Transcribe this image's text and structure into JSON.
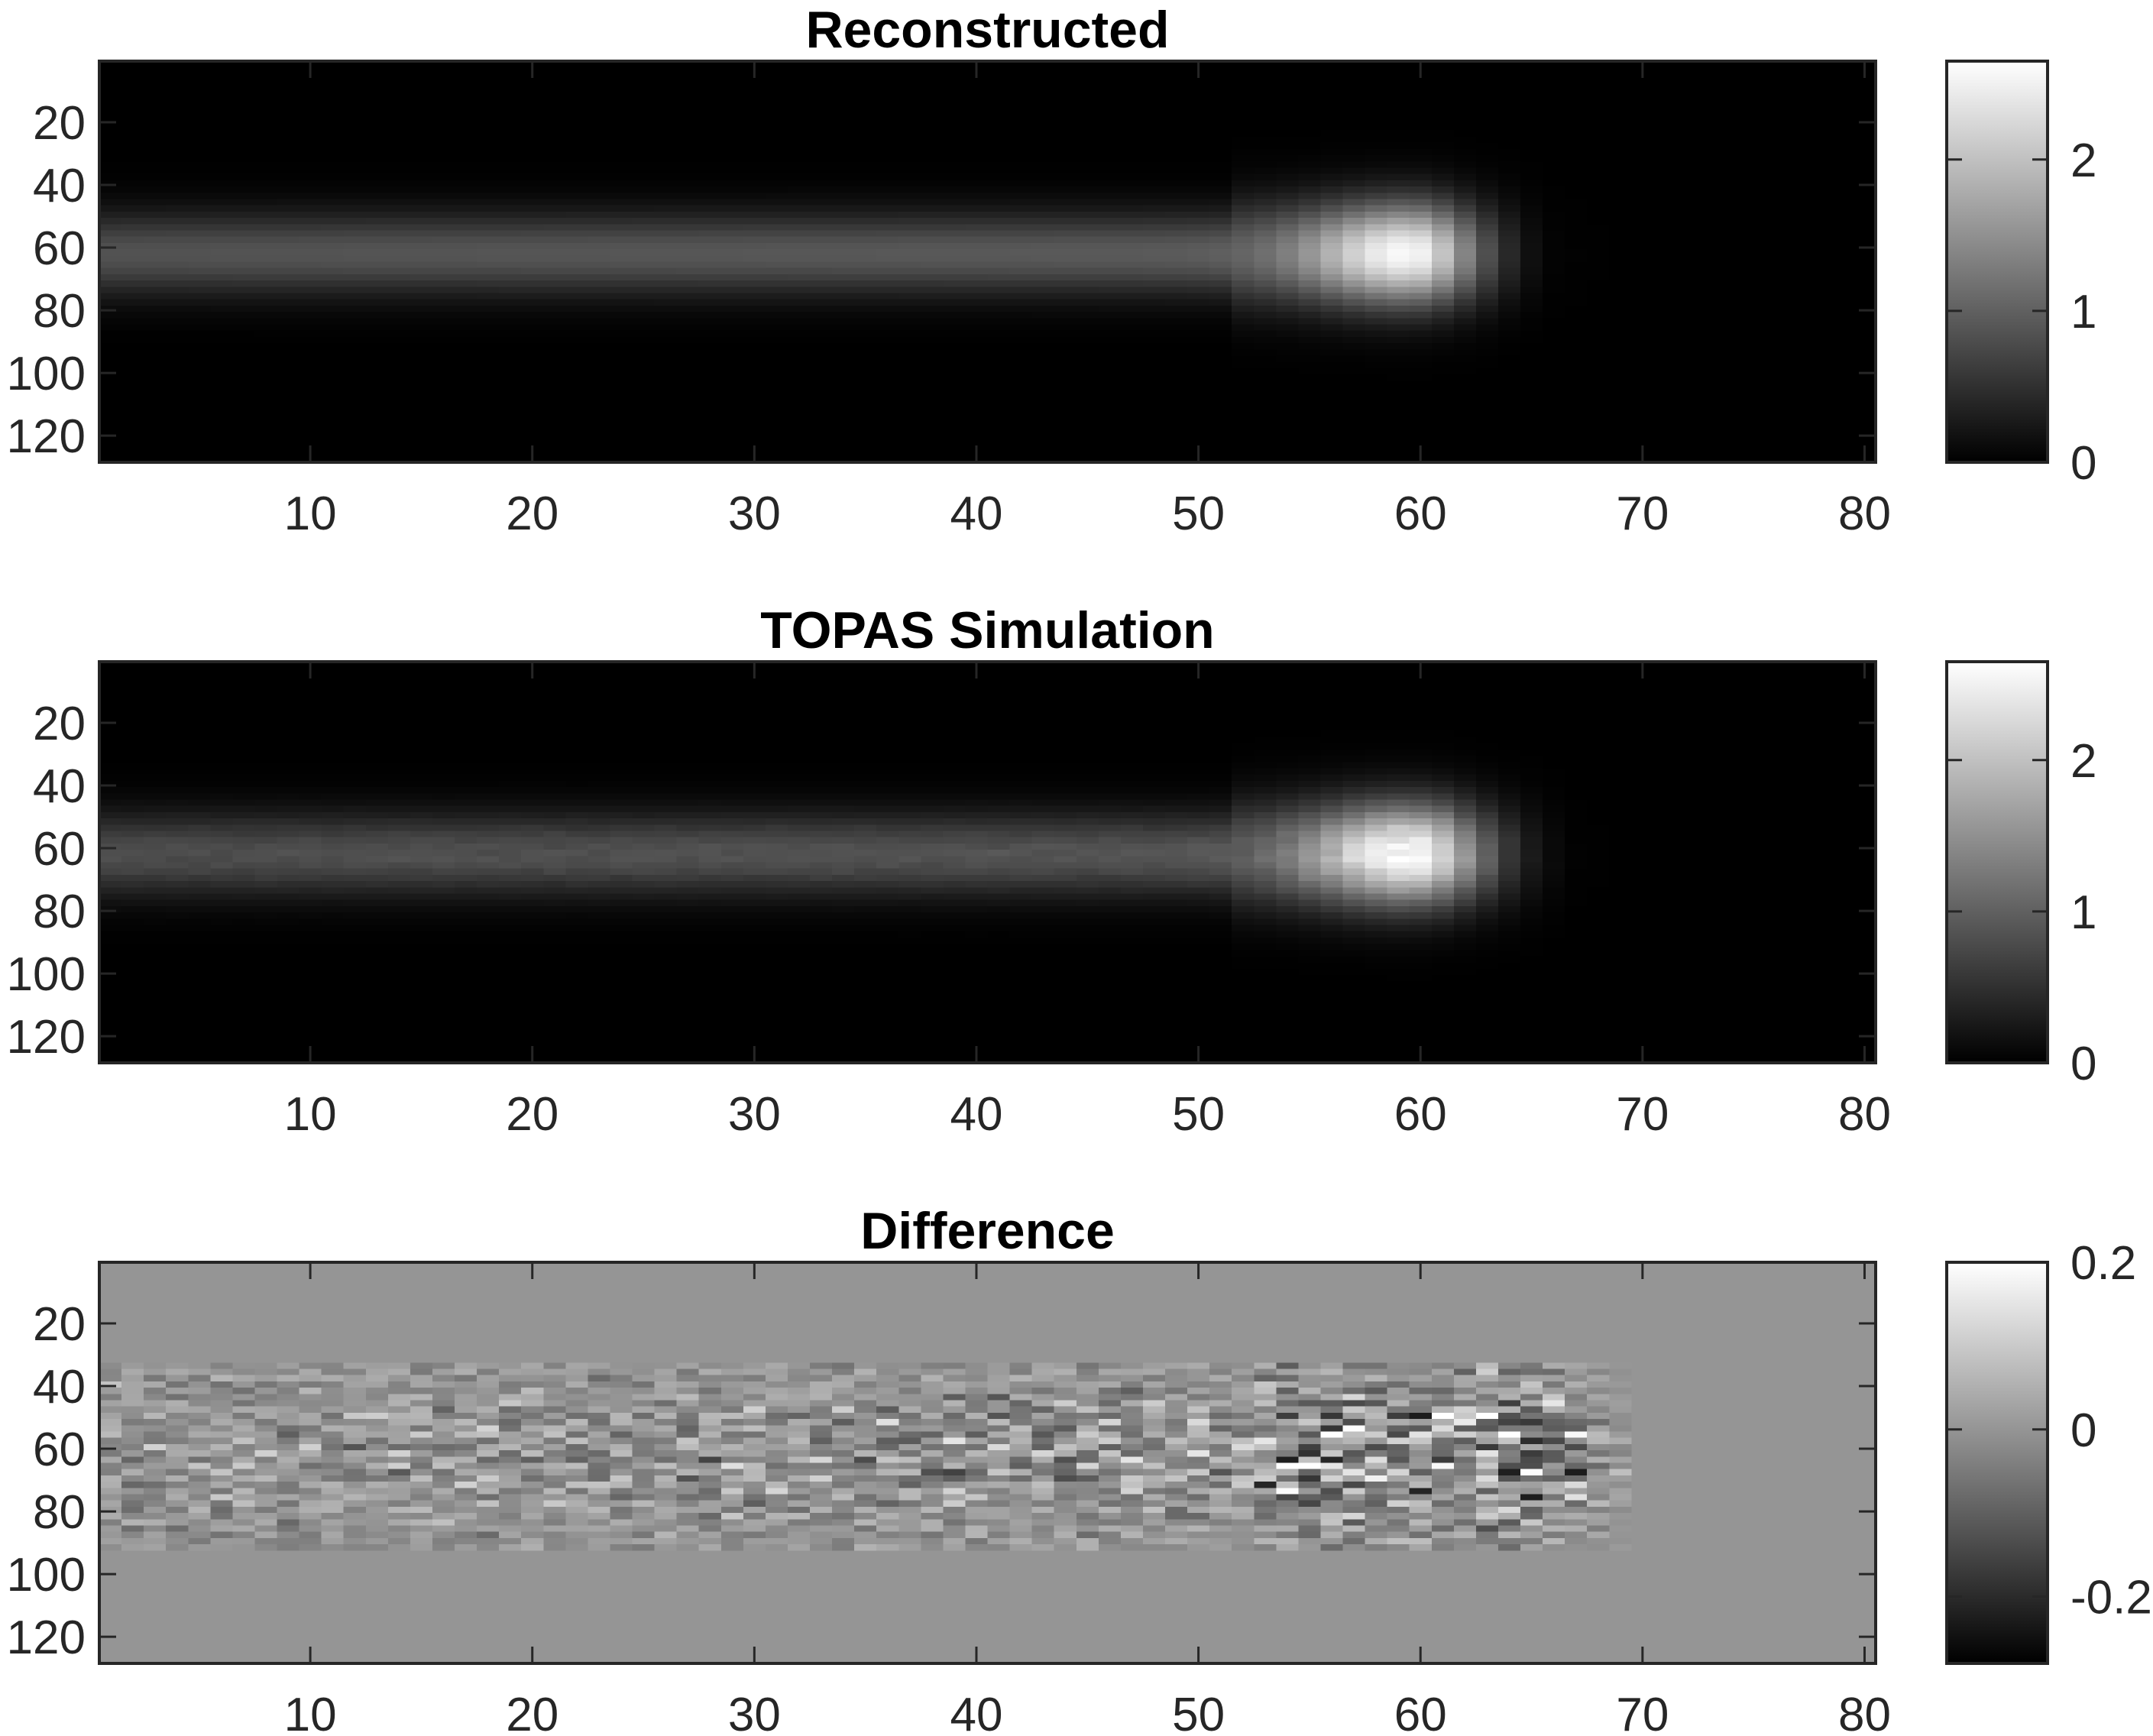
{
  "chart_data": [
    {
      "type": "heatmap",
      "title": "Reconstructed",
      "colormap": "gray",
      "xlim": [
        0.5,
        80.5
      ],
      "ylim": [
        0.5,
        128.5
      ],
      "x_ticks": [
        10,
        20,
        30,
        40,
        50,
        60,
        70,
        80
      ],
      "y_ticks": [
        20,
        40,
        60,
        80,
        100,
        120
      ],
      "y_direction": "reversed",
      "beam": {
        "center_row": 62,
        "width_rows": 9,
        "plateau_value": 0.85,
        "peak_column": 59.5,
        "peak_value": 2.6,
        "falloff_column": 66
      },
      "colorbar": {
        "range": [
          0,
          2.65
        ],
        "ticks": [
          0,
          1,
          2
        ],
        "tick_labels": [
          "0",
          "1",
          "2"
        ]
      }
    },
    {
      "type": "heatmap",
      "title": "TOPAS Simulation",
      "colormap": "gray",
      "xlim": [
        0.5,
        80.5
      ],
      "ylim": [
        0.5,
        128.5
      ],
      "x_ticks": [
        10,
        20,
        30,
        40,
        50,
        60,
        70,
        80
      ],
      "y_ticks": [
        20,
        40,
        60,
        80,
        100,
        120
      ],
      "y_direction": "reversed",
      "beam": {
        "center_row": 62,
        "width_rows": 9,
        "plateau_value": 0.8,
        "peak_column": 59.5,
        "peak_value": 2.65,
        "falloff_column": 67
      },
      "colorbar": {
        "range": [
          0,
          2.65
        ],
        "ticks": [
          0,
          1,
          2
        ],
        "tick_labels": [
          "0",
          "1",
          "2"
        ]
      }
    },
    {
      "type": "heatmap",
      "title": "Difference",
      "colormap": "gray",
      "xlim": [
        0.5,
        80.5
      ],
      "ylim": [
        0.5,
        128.5
      ],
      "x_ticks": [
        10,
        20,
        30,
        40,
        50,
        60,
        70,
        80
      ],
      "y_ticks": [
        20,
        40,
        60,
        80,
        100,
        120
      ],
      "y_direction": "reversed",
      "background_value": 0,
      "noise_band_rows": [
        32,
        92
      ],
      "noise_extent_column": 70,
      "colorbar": {
        "range": [
          -0.28,
          0.2
        ],
        "ticks": [
          -0.2,
          0,
          0.2
        ],
        "tick_labels": [
          "-0.2",
          "0",
          "0.2"
        ]
      }
    }
  ]
}
